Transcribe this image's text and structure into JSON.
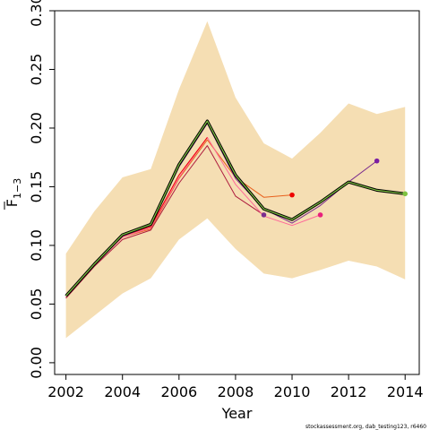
{
  "chart_data": {
    "type": "line",
    "xlabel": "Year",
    "ylabel_main": "F",
    "ylabel_sub": "1−3",
    "xlim": [
      2001.6,
      2014.5
    ],
    "ylim": [
      -0.01,
      0.3
    ],
    "xticks": [
      2002,
      2004,
      2006,
      2008,
      2010,
      2012,
      2014
    ],
    "yticks": [
      0.0,
      0.05,
      0.1,
      0.15,
      0.2,
      0.25,
      0.3
    ],
    "xtick_labels": [
      "2002",
      "2004",
      "2006",
      "2008",
      "2010",
      "2012",
      "2014"
    ],
    "ytick_labels": [
      "0.00",
      "0.05",
      "0.10",
      "0.15",
      "0.20",
      "0.25",
      "0.30"
    ],
    "band": {
      "color": "#f5deb3",
      "x": [
        2002,
        2003,
        2004,
        2005,
        2006,
        2007,
        2008,
        2009,
        2010,
        2011,
        2012,
        2013,
        2014
      ],
      "upper": [
        0.093,
        0.129,
        0.158,
        0.165,
        0.233,
        0.291,
        0.226,
        0.187,
        0.174,
        0.196,
        0.221,
        0.212,
        0.218
      ],
      "lower": [
        0.021,
        0.04,
        0.059,
        0.072,
        0.105,
        0.123,
        0.097,
        0.076,
        0.072,
        0.079,
        0.087,
        0.082,
        0.071
      ]
    },
    "series": [
      {
        "color": "#e8601c",
        "x": [
          2002,
          2003,
          2004,
          2005,
          2006,
          2007,
          2008,
          2009,
          2010
        ],
        "y": [
          0.056,
          0.084,
          0.107,
          0.114,
          0.157,
          0.19,
          0.158,
          0.141,
          0.143
        ]
      },
      {
        "color": "#ae1c3e",
        "x": [
          2002,
          2003,
          2004,
          2005,
          2006,
          2007,
          2008,
          2009
        ],
        "y": [
          0.055,
          0.082,
          0.105,
          0.113,
          0.153,
          0.185,
          0.142,
          0.126
        ]
      },
      {
        "color": "#ff6699",
        "x": [
          2002,
          2003,
          2004,
          2005,
          2006,
          2007,
          2008,
          2009,
          2010,
          2011
        ],
        "y": [
          0.056,
          0.083,
          0.107,
          0.115,
          0.158,
          0.192,
          0.152,
          0.125,
          0.117,
          0.126
        ]
      },
      {
        "color": "#ee0000",
        "x": [
          2002,
          2003,
          2004,
          2005,
          2006,
          2007
        ],
        "y": [
          0.057,
          0.083,
          0.108,
          0.116,
          0.16,
          0.192
        ]
      },
      {
        "color": "#7b2d8e",
        "x": [
          2002,
          2003,
          2004,
          2005,
          2006,
          2007,
          2008,
          2009,
          2010,
          2011,
          2012,
          2013
        ],
        "y": [
          0.057,
          0.084,
          0.108,
          0.117,
          0.167,
          0.204,
          0.157,
          0.131,
          0.119,
          0.134,
          0.154,
          0.172
        ]
      },
      {
        "color": "#000000",
        "width": 3.2,
        "x": [
          2002,
          2003,
          2004,
          2005,
          2006,
          2007,
          2008,
          2009,
          2010,
          2011,
          2012,
          2013,
          2014
        ],
        "y": [
          0.057,
          0.084,
          0.109,
          0.118,
          0.169,
          0.206,
          0.16,
          0.131,
          0.122,
          0.137,
          0.154,
          0.147,
          0.144
        ]
      },
      {
        "color": "#7fc241",
        "width": 1.2,
        "x": [
          2002,
          2003,
          2004,
          2005,
          2006,
          2007,
          2008,
          2009,
          2010,
          2011,
          2012,
          2013,
          2014
        ],
        "y": [
          0.057,
          0.084,
          0.109,
          0.118,
          0.169,
          0.206,
          0.16,
          0.131,
          0.122,
          0.137,
          0.154,
          0.147,
          0.144
        ]
      }
    ],
    "endpoints": [
      {
        "color": "#ee0000",
        "x": 2010,
        "y": 0.143
      },
      {
        "color": "#7b2d8e",
        "x": 2009,
        "y": 0.126
      },
      {
        "color": "#e8207c",
        "x": 2011,
        "y": 0.126
      },
      {
        "color": "#7b1fa2",
        "x": 2013,
        "y": 0.172
      },
      {
        "color": "#7fc241",
        "x": 2014,
        "y": 0.144
      }
    ]
  },
  "footnote": "stockassessment.org, dab_testing123, r6460"
}
